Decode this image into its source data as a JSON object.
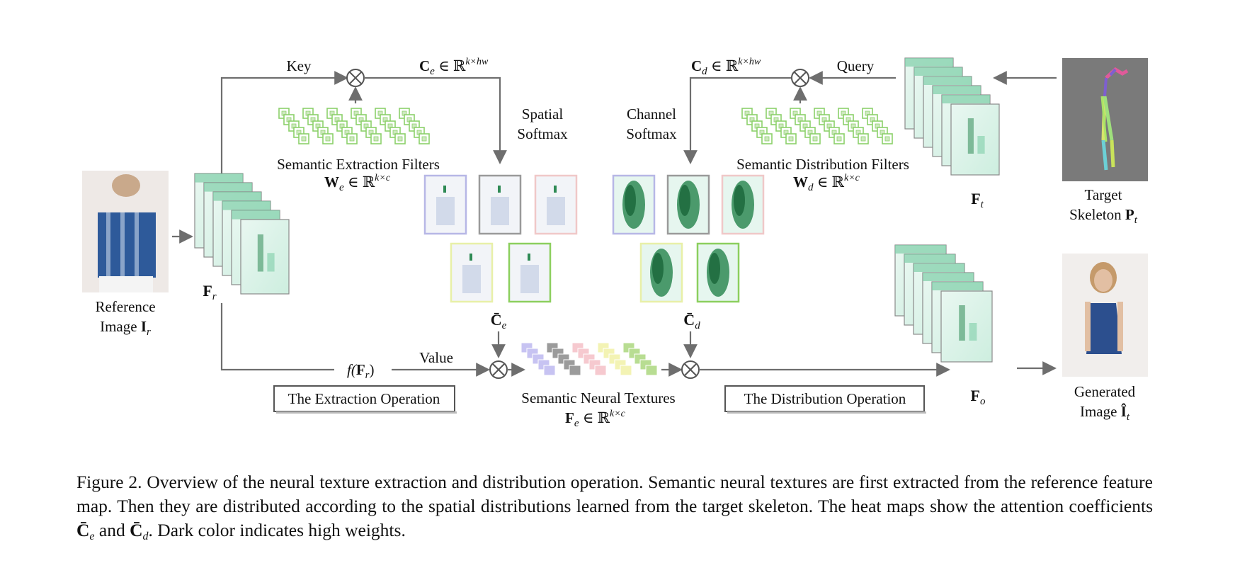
{
  "figure": {
    "labels": {
      "key": "Key",
      "query": "Query",
      "value": "Value",
      "spatial_softmax_1": "Spatial",
      "spatial_softmax_2": "Softmax",
      "channel_softmax_1": "Channel",
      "channel_softmax_2": "Softmax",
      "semantic_extraction_filters": "Semantic Extraction Filters",
      "semantic_distribution_filters": "Semantic Distribution Filters",
      "semantic_neural_textures": "Semantic Neural Textures",
      "reference_image_1": "Reference",
      "reference_image_2": "Image",
      "target_skeleton_1": "Target",
      "target_skeleton_2": "Skeleton",
      "generated_image_1": "Generated",
      "generated_image_2": "Image",
      "extraction_operation": "The Extraction Operation",
      "distribution_operation": "The Distribution Operation",
      "ce_symbol": "C",
      "ce_sub": "e",
      "ce_set": "∈ ℝ",
      "ce_sup": "k×hw",
      "cd_symbol": "C",
      "cd_sub": "d",
      "cd_set": "∈ ℝ",
      "cd_sup": "k×hw",
      "we_symbol": "W",
      "we_sub": "e",
      "we_set": "∈ ℝ",
      "we_sup": "k×c",
      "wd_symbol": "W",
      "wd_sub": "d",
      "wd_set": "∈ ℝ",
      "wd_sup": "k×c",
      "fe_symbol": "F",
      "fe_sub": "e",
      "fe_set": "∈ ℝ",
      "fe_sup": "k×c",
      "fr_symbol": "F",
      "fr_sub": "r",
      "ft_symbol": "F",
      "ft_sub": "t",
      "fo_symbol": "F",
      "fo_sub": "o",
      "ir_symbol": "I",
      "ir_sub": "r",
      "pt_symbol": "P",
      "pt_sub": "t",
      "it_symbol": "Î",
      "it_sub": "t",
      "cbar_e_symbol": "C̄",
      "cbar_e_sub": "e",
      "cbar_d_symbol": "C̄",
      "cbar_d_sub": "d",
      "f_fr_prefix": "f(",
      "f_fr_symbol": "F",
      "f_fr_sub": "r",
      "f_fr_suffix": ")"
    },
    "colors": {
      "arrow": "#6e6e6e",
      "filter_green": "#8cd06a",
      "heat_light": "#e6f6ef",
      "heat_mid": "#7fcfa8",
      "heat_dark": "#2f8a55",
      "skeleton_bg": "#7a7a7a"
    }
  },
  "caption": {
    "prefix": "Figure 2.  Overview of the neural texture extraction and distribution operation.  Semantic neural textures are first extracted from the reference feature map. Then they are distributed according to the spatial distributions learned from the target skeleton. The heat maps show the attention coefficients ",
    "ce": "C̄",
    "ce_sub": "e",
    "and": " and ",
    "cd": "C̄",
    "cd_sub": "d",
    "suffix": ". Dark color indicates high weights."
  }
}
